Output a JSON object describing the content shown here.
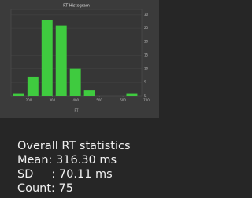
{
  "chart_data": {
    "type": "histogram",
    "title": "RT Histogram",
    "x_label": "RT",
    "bins": [
      128,
      188,
      248,
      308,
      368,
      428,
      488,
      548,
      608,
      668
    ],
    "values": [
      1,
      7,
      28,
      26,
      10,
      2,
      0,
      0,
      1
    ],
    "color": "#3fcb3f",
    "xlim": [
      125,
      700
    ],
    "xticks": [
      200,
      300,
      400,
      500,
      600,
      700
    ],
    "ylim": [
      0,
      32
    ],
    "yticks": [
      0,
      5,
      10,
      15,
      20,
      25,
      30
    ],
    "grid": true
  },
  "stats": {
    "heading": "Overall RT statistics",
    "mean": "Mean: 316.30 ms",
    "sd": "SD     : 70.11 ms",
    "count": "Count: 75"
  }
}
